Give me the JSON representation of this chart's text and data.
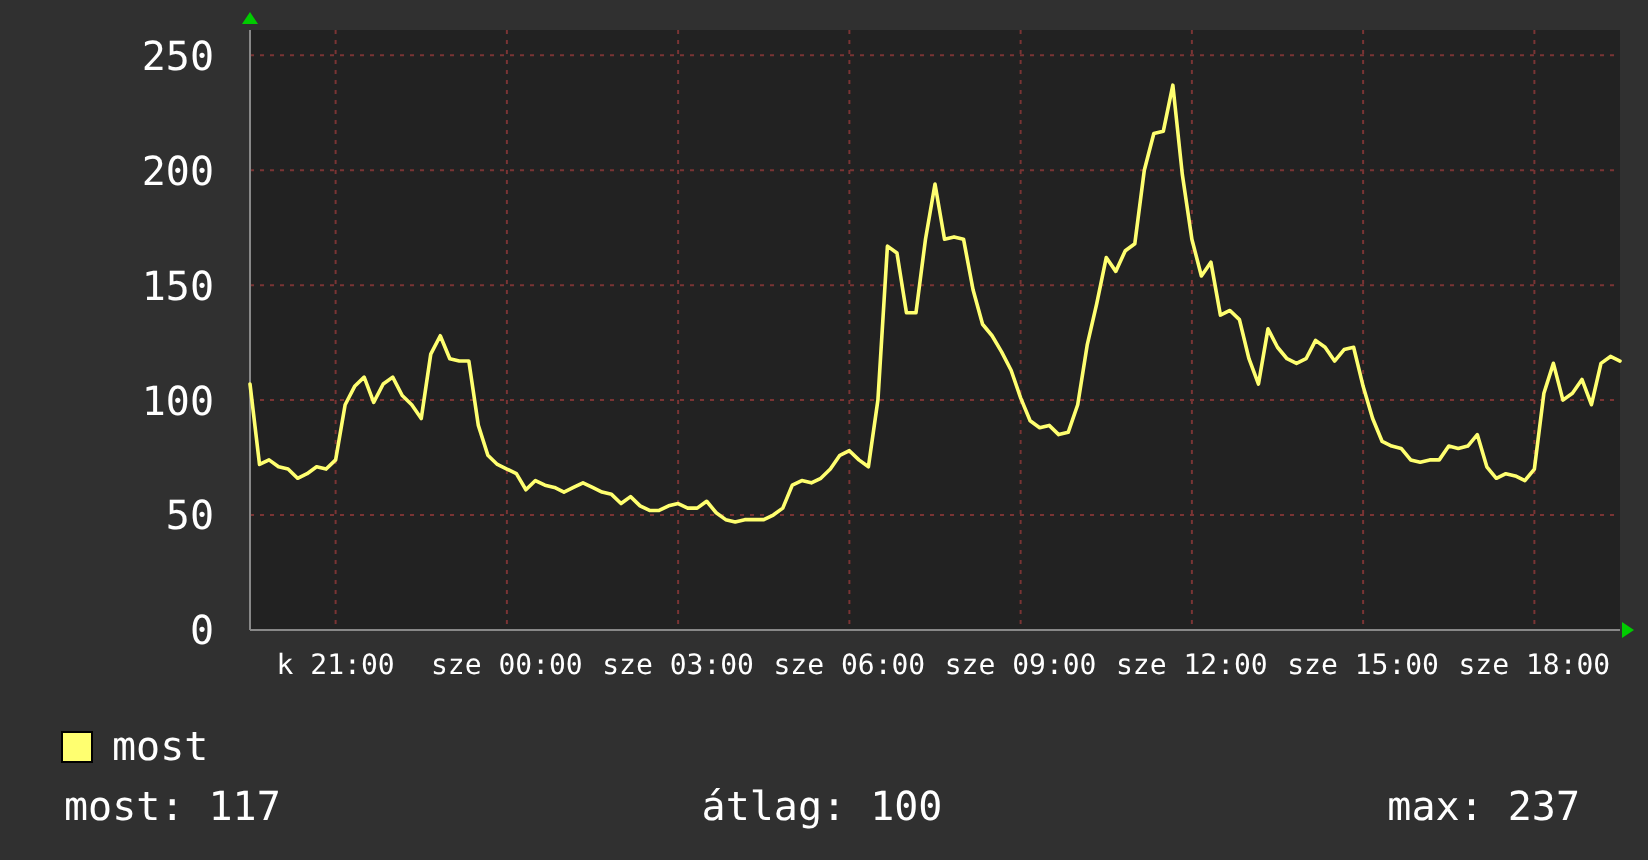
{
  "chart_data": {
    "type": "line",
    "ylim": [
      0,
      261
    ],
    "yticks": [
      0,
      50,
      100,
      150,
      200,
      250
    ],
    "grid": true,
    "legend": "bottom left",
    "categories": [
      null,
      null,
      null,
      null,
      null,
      null,
      null,
      null,
      null,
      "k 21:00",
      null,
      null,
      null,
      null,
      null,
      null,
      null,
      null,
      null,
      null,
      null,
      null,
      null,
      null,
      null,
      null,
      null,
      "sze 00:00",
      null,
      null,
      null,
      null,
      null,
      null,
      null,
      null,
      null,
      null,
      null,
      null,
      null,
      null,
      null,
      null,
      null,
      "sze 03:00",
      null,
      null,
      null,
      null,
      null,
      null,
      null,
      null,
      null,
      null,
      null,
      null,
      null,
      null,
      null,
      null,
      null,
      "sze 06:00",
      null,
      null,
      null,
      null,
      null,
      null,
      null,
      null,
      null,
      null,
      null,
      null,
      null,
      null,
      null,
      null,
      null,
      "sze 09:00",
      null,
      null,
      null,
      null,
      null,
      null,
      null,
      null,
      null,
      null,
      null,
      null,
      null,
      null,
      null,
      null,
      null,
      "sze 12:00",
      null,
      null,
      null,
      null,
      null,
      null,
      null,
      null,
      null,
      null,
      null,
      null,
      null,
      null,
      null,
      null,
      null,
      "sze 15:00",
      null,
      null,
      null,
      null,
      null,
      null,
      null,
      null,
      null,
      null,
      null,
      null,
      null,
      null,
      null,
      null,
      null,
      "sze 18:00",
      null,
      null,
      null,
      null,
      null,
      null,
      null,
      null,
      null
    ],
    "series": [
      {
        "name": "most",
        "color": "#ffff70",
        "values": [
          107,
          72,
          74,
          71,
          70,
          66,
          68,
          71,
          70,
          74,
          98,
          106,
          110,
          99,
          107,
          110,
          102,
          98,
          92,
          120,
          128,
          118,
          117,
          117,
          89,
          76,
          72,
          70,
          68,
          61,
          65,
          63,
          62,
          60,
          62,
          64,
          62,
          60,
          59,
          55,
          58,
          54,
          52,
          52,
          54,
          55,
          53,
          53,
          56,
          51,
          48,
          47,
          48,
          48,
          48,
          50,
          53,
          63,
          65,
          64,
          66,
          70,
          76,
          78,
          74,
          71,
          100,
          167,
          164,
          138,
          138,
          170,
          194,
          170,
          171,
          170,
          148,
          133,
          128,
          121,
          113,
          101,
          91,
          88,
          89,
          85,
          86,
          98,
          124,
          142,
          162,
          156,
          165,
          168,
          200,
          216,
          217,
          237,
          198,
          170,
          154,
          160,
          137,
          139,
          135,
          118,
          107,
          131,
          123,
          118,
          116,
          118,
          126,
          123,
          117,
          122,
          123,
          106,
          92,
          82,
          80,
          79,
          74,
          73,
          74,
          74,
          80,
          79,
          80,
          85,
          71,
          66,
          68,
          67,
          65,
          70,
          103,
          116,
          100,
          103,
          109,
          98,
          116,
          119,
          117
        ]
      }
    ],
    "annotations": [
      "most: 117",
      "átlag: 100",
      "max: 237"
    ]
  }
}
